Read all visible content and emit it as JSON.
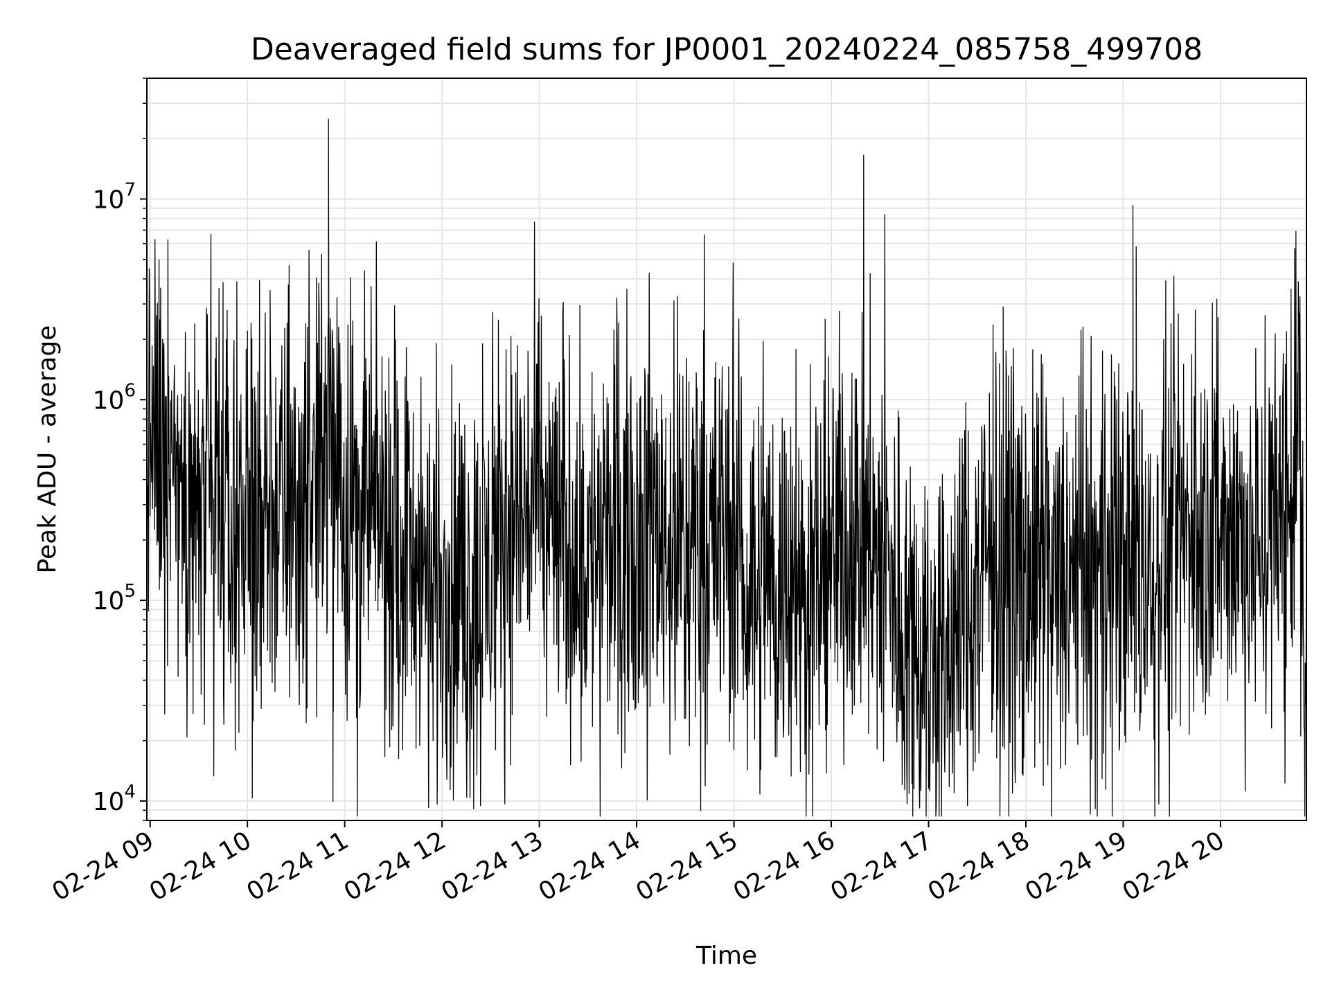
{
  "chart_data": {
    "type": "line",
    "title": "Deaveraged field sums for JP0001_20240224_085758_499708",
    "xlabel": "Time",
    "ylabel": "Peak ADU - average",
    "yscale": "log",
    "ylim": [
      8000,
      40000000
    ],
    "xlim": [
      "2024-02-24 08:58",
      "2024-02-24 20:53"
    ],
    "x_ticks": [
      {
        "label": "02-24 09",
        "time": "2024-02-24 09:00"
      },
      {
        "label": "02-24 10",
        "time": "2024-02-24 10:00"
      },
      {
        "label": "02-24 11",
        "time": "2024-02-24 11:00"
      },
      {
        "label": "02-24 12",
        "time": "2024-02-24 12:00"
      },
      {
        "label": "02-24 13",
        "time": "2024-02-24 13:00"
      },
      {
        "label": "02-24 14",
        "time": "2024-02-24 14:00"
      },
      {
        "label": "02-24 15",
        "time": "2024-02-24 15:00"
      },
      {
        "label": "02-24 16",
        "time": "2024-02-24 16:00"
      },
      {
        "label": "02-24 17",
        "time": "2024-02-24 17:00"
      },
      {
        "label": "02-24 18",
        "time": "2024-02-24 18:00"
      },
      {
        "label": "02-24 19",
        "time": "2024-02-24 19:00"
      },
      {
        "label": "02-24 20",
        "time": "2024-02-24 20:00"
      }
    ],
    "y_ticks": [
      {
        "base": "10",
        "exp": "4",
        "value": 10000
      },
      {
        "base": "10",
        "exp": "5",
        "value": 100000
      },
      {
        "base": "10",
        "exp": "6",
        "value": 1000000
      },
      {
        "base": "10",
        "exp": "7",
        "value": 10000000
      }
    ],
    "grid": true,
    "line_color": "#000000",
    "grid_color": "#e6e6e6",
    "series": [
      {
        "x": [
          "2024-02-24 08:58",
          "2024-02-24 09:05",
          "2024-02-24 09:15",
          "2024-02-24 09:25",
          "2024-02-24 09:35",
          "2024-02-24 09:45",
          "2024-02-24 09:55",
          "2024-02-24 10:05",
          "2024-02-24 10:15",
          "2024-02-24 10:25",
          "2024-02-24 10:35",
          "2024-02-24 10:45",
          "2024-02-24 10:50",
          "2024-02-24 10:55",
          "2024-02-24 11:05",
          "2024-02-24 11:15",
          "2024-02-24 11:25",
          "2024-02-24 11:35",
          "2024-02-24 11:45",
          "2024-02-24 11:55",
          "2024-02-24 12:05",
          "2024-02-24 12:15",
          "2024-02-24 12:25",
          "2024-02-24 12:35",
          "2024-02-24 12:45",
          "2024-02-24 12:55",
          "2024-02-24 13:05",
          "2024-02-24 13:15",
          "2024-02-24 13:25",
          "2024-02-24 13:35",
          "2024-02-24 13:45",
          "2024-02-24 13:55",
          "2024-02-24 14:05",
          "2024-02-24 14:15",
          "2024-02-24 14:25",
          "2024-02-24 14:35",
          "2024-02-24 14:45",
          "2024-02-24 14:55",
          "2024-02-24 15:05",
          "2024-02-24 15:15",
          "2024-02-24 15:25",
          "2024-02-24 15:35",
          "2024-02-24 15:45",
          "2024-02-24 15:55",
          "2024-02-24 16:05",
          "2024-02-24 16:15",
          "2024-02-24 16:25",
          "2024-02-24 16:35",
          "2024-02-24 16:45",
          "2024-02-24 16:55",
          "2024-02-24 17:05",
          "2024-02-24 17:15",
          "2024-02-24 17:25",
          "2024-02-24 17:35",
          "2024-02-24 17:45",
          "2024-02-24 17:55",
          "2024-02-24 18:05",
          "2024-02-24 18:15",
          "2024-02-24 18:25",
          "2024-02-24 18:35",
          "2024-02-24 18:45",
          "2024-02-24 18:55",
          "2024-02-24 19:05",
          "2024-02-24 19:15",
          "2024-02-24 19:25",
          "2024-02-24 19:35",
          "2024-02-24 19:45",
          "2024-02-24 19:55",
          "2024-02-24 20:05",
          "2024-02-24 20:15",
          "2024-02-24 20:25",
          "2024-02-24 20:35",
          "2024-02-24 20:42",
          "2024-02-24 20:48",
          "2024-02-24 20:53"
        ],
        "center": [
          600000,
          600000,
          500000,
          300000,
          250000,
          220000,
          250000,
          300000,
          280000,
          250000,
          330000,
          450000,
          700000,
          400000,
          300000,
          260000,
          250000,
          200000,
          140000,
          130000,
          110000,
          100000,
          110000,
          200000,
          280000,
          300000,
          280000,
          200000,
          170000,
          180000,
          200000,
          210000,
          260000,
          220000,
          210000,
          240000,
          230000,
          230000,
          150000,
          140000,
          130000,
          110000,
          100000,
          140000,
          200000,
          280000,
          170000,
          120000,
          80000,
          60000,
          50000,
          70000,
          90000,
          150000,
          170000,
          150000,
          130000,
          120000,
          110000,
          120000,
          120000,
          140000,
          150000,
          150000,
          200000,
          210000,
          220000,
          230000,
          220000,
          210000,
          210000,
          230000,
          300000,
          900000,
          40000
        ],
        "peaks": [
          {
            "x": "2024-02-24 09:06",
            "y": 2500000
          },
          {
            "x": "2024-02-24 10:00",
            "y": 2200000
          },
          {
            "x": "2024-02-24 10:14",
            "y": 3500000
          },
          {
            "x": "2024-02-24 10:37",
            "y": 2300000
          },
          {
            "x": "2024-02-24 10:50",
            "y": 25000000
          },
          {
            "x": "2024-02-24 12:25",
            "y": 1900000
          },
          {
            "x": "2024-02-24 15:47",
            "y": 1500000
          },
          {
            "x": "2024-02-24 17:46",
            "y": 2900000
          },
          {
            "x": "2024-02-24 19:06",
            "y": 9300000
          },
          {
            "x": "2024-02-24 19:08",
            "y": 5800000
          },
          {
            "x": "2024-02-24 20:40",
            "y": 1500000
          }
        ],
        "dips": [
          {
            "x": "2024-02-24 10:53",
            "y": 28000
          },
          {
            "x": "2024-02-24 12:33",
            "y": 18000
          },
          {
            "x": "2024-02-24 16:51",
            "y": 11500
          },
          {
            "x": "2024-02-24 17:01",
            "y": 16000
          }
        ]
      }
    ]
  }
}
